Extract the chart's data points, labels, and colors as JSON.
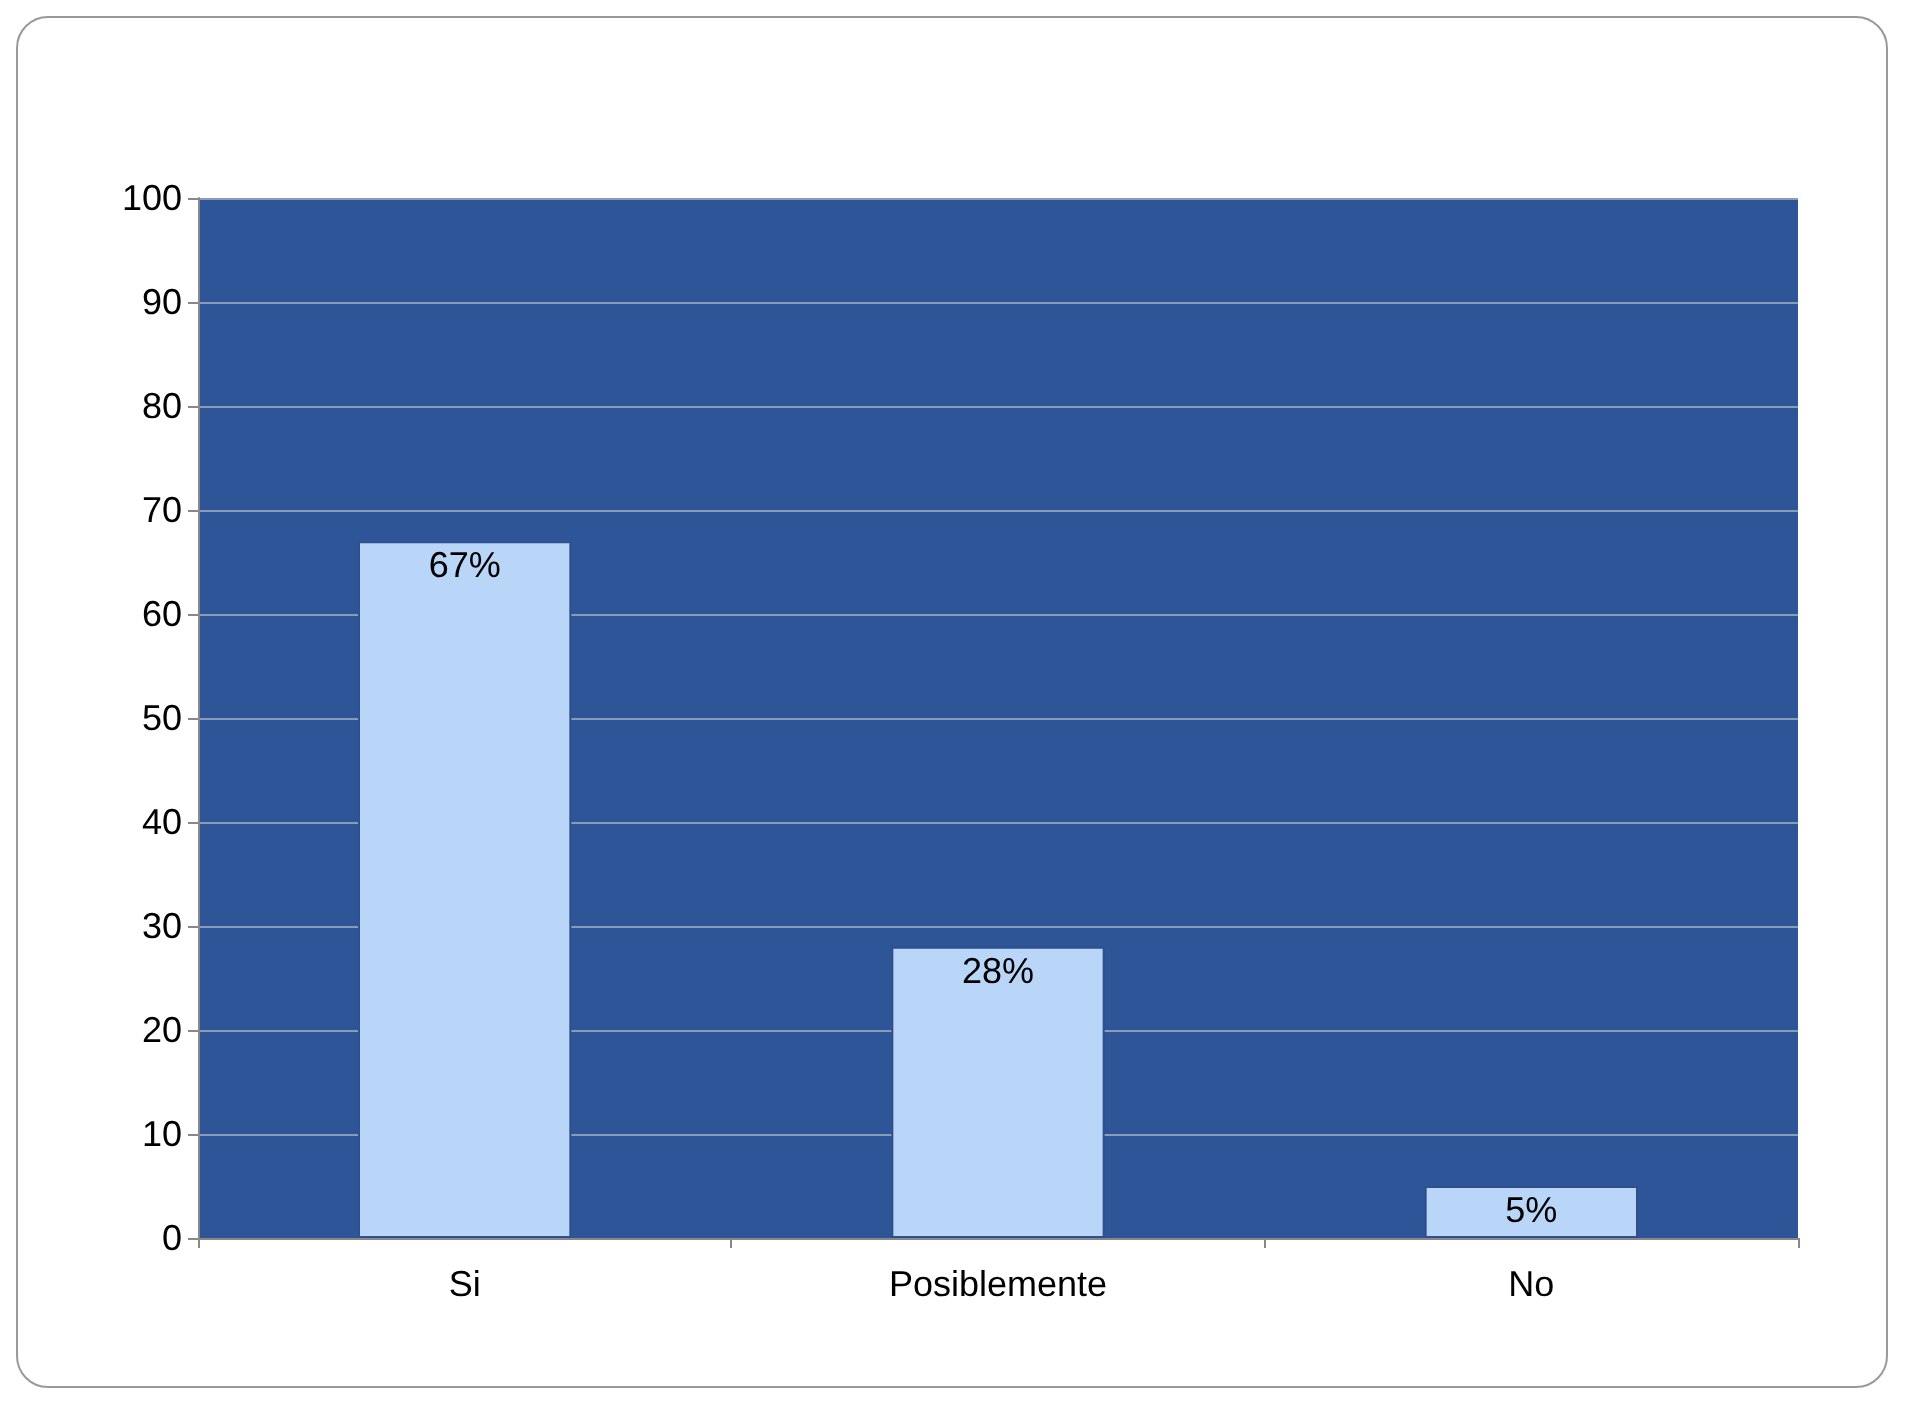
{
  "chart_data": {
    "type": "bar",
    "categories": [
      "Si",
      "Posiblemente",
      "No"
    ],
    "values": [
      67,
      28,
      5
    ],
    "value_labels": [
      "67%",
      "28%",
      "5%"
    ],
    "color": "#b9d5f8",
    "ylim": [
      0,
      100
    ],
    "yticks": [
      0,
      10,
      20,
      30,
      40,
      50,
      60,
      70,
      80,
      90,
      100
    ],
    "grid": "y"
  }
}
